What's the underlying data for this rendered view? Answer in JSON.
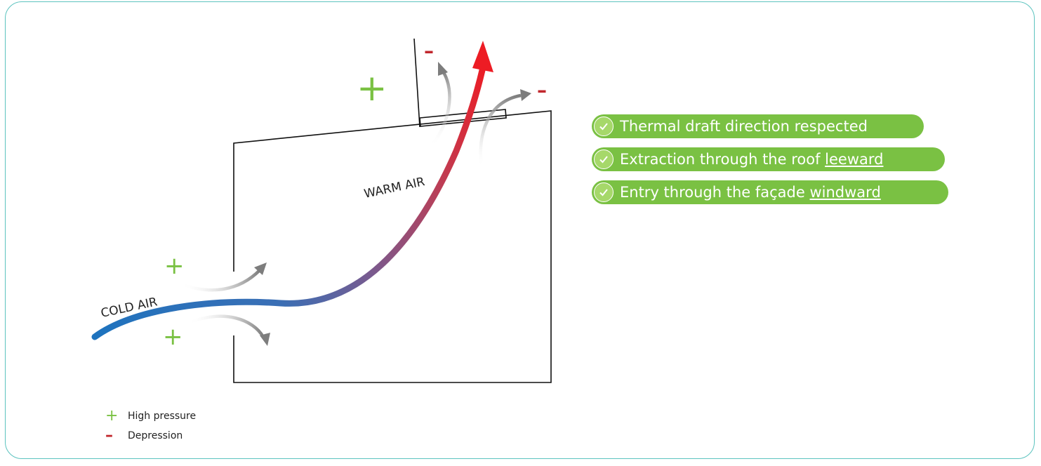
{
  "diagram": {
    "cold_air_label": "COLD AIR",
    "warm_air_label": "WARM AIR",
    "plus_symbol": "+",
    "minus_symbol": "–"
  },
  "checklist": [
    {
      "text": "Thermal draft direction respected",
      "underlined": ""
    },
    {
      "text": "Extraction through the roof ",
      "underlined": "leeward"
    },
    {
      "text": "Entry through the façade ",
      "underlined": "windward"
    }
  ],
  "legend": {
    "plus_symbol": "+",
    "high_pressure": "High pressure",
    "minus_symbol": "–",
    "depression": "Depression"
  },
  "colors": {
    "frame": "#5cc3bf",
    "pill": "#7ac143",
    "plus": "#7ac143",
    "minus": "#c1272d",
    "cold": "#1e73be",
    "warm": "#ed1c24",
    "arrow_gray": "#8a8a8a"
  }
}
